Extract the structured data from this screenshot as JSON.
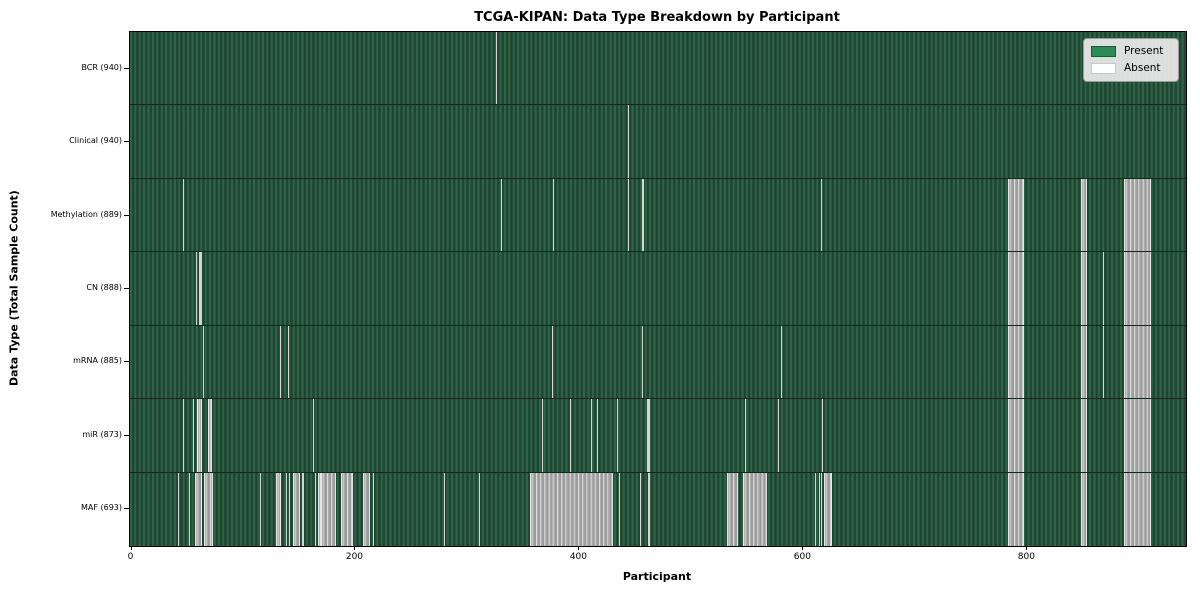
{
  "chart_data": {
    "type": "heatmap",
    "title": "TCGA-KIPAN: Data Type Breakdown by Participant",
    "xlabel": "Participant",
    "ylabel": "Data Type (Total Sample Count)",
    "x_max": 943,
    "x_ticks": [
      0,
      200,
      400,
      600,
      800
    ],
    "grid": "row-dividers",
    "legend_position": "upper right",
    "legend": [
      {
        "label": "Present",
        "color": "#2e8b57"
      },
      {
        "label": "Absent",
        "color": "#ffffff"
      }
    ],
    "value_encoding": {
      "present": 1,
      "absent": 0
    },
    "rows": [
      {
        "label": "BCR (940)",
        "data_type": "BCR",
        "present_count": 940,
        "absent_runs": [
          [
            327,
            1
          ]
        ]
      },
      {
        "label": "Clinical (940)",
        "data_type": "Clinical",
        "present_count": 940,
        "absent_runs": [
          [
            445,
            1
          ]
        ]
      },
      {
        "label": "Methylation (889)",
        "data_type": "Methylation",
        "present_count": 889,
        "absent_runs": [
          [
            47,
            1
          ],
          [
            331,
            1
          ],
          [
            378,
            1
          ],
          [
            445,
            1
          ],
          [
            457,
            2
          ],
          [
            617,
            1
          ],
          [
            784,
            14
          ],
          [
            849,
            6
          ],
          [
            888,
            24
          ]
        ]
      },
      {
        "label": "CN (888)",
        "data_type": "CN",
        "present_count": 888,
        "absent_runs": [
          [
            59,
            1
          ],
          [
            62,
            2
          ],
          [
            784,
            14
          ],
          [
            849,
            6
          ],
          [
            869,
            1
          ],
          [
            888,
            24
          ]
        ]
      },
      {
        "label": "mRNA (885)",
        "data_type": "mRNA",
        "present_count": 885,
        "absent_runs": [
          [
            65,
            1
          ],
          [
            134,
            1
          ],
          [
            141,
            1
          ],
          [
            377,
            1
          ],
          [
            457,
            1
          ],
          [
            581,
            1
          ],
          [
            784,
            14
          ],
          [
            849,
            6
          ],
          [
            869,
            1
          ],
          [
            888,
            24
          ]
        ]
      },
      {
        "label": "miR (873)",
        "data_type": "miR",
        "present_count": 873,
        "absent_runs": [
          [
            47,
            1
          ],
          [
            56,
            1
          ],
          [
            60,
            4
          ],
          [
            70,
            3
          ],
          [
            163,
            1
          ],
          [
            368,
            1
          ],
          [
            393,
            1
          ],
          [
            412,
            1
          ],
          [
            417,
            1
          ],
          [
            435,
            1
          ],
          [
            462,
            2
          ],
          [
            549,
            1
          ],
          [
            579,
            1
          ],
          [
            618,
            1
          ],
          [
            784,
            14
          ],
          [
            849,
            6
          ],
          [
            888,
            24
          ]
        ]
      },
      {
        "label": "MAF (693)",
        "data_type": "MAF",
        "present_count": 693,
        "absent_runs": [
          [
            43,
            1
          ],
          [
            53,
            1
          ],
          [
            58,
            6
          ],
          [
            66,
            8
          ],
          [
            116,
            1
          ],
          [
            130,
            5
          ],
          [
            139,
            1
          ],
          [
            142,
            1
          ],
          [
            146,
            6
          ],
          [
            154,
            1
          ],
          [
            165,
            1
          ],
          [
            168,
            3
          ],
          [
            171,
            13
          ],
          [
            188,
            11
          ],
          [
            208,
            6
          ],
          [
            217,
            1
          ],
          [
            280,
            1
          ],
          [
            312,
            1
          ],
          [
            357,
            74
          ],
          [
            437,
            1
          ],
          [
            455,
            1
          ],
          [
            463,
            1
          ],
          [
            533,
            10
          ],
          [
            547,
            22
          ],
          [
            612,
            1
          ],
          [
            615,
            1
          ],
          [
            617,
            1
          ],
          [
            620,
            7
          ],
          [
            784,
            14
          ],
          [
            849,
            6
          ],
          [
            888,
            24
          ]
        ]
      }
    ]
  },
  "colors": {
    "present_fill": "#2e8b57",
    "present_dark_stripe": "#1e4531",
    "absent_fill": "#ffffff",
    "absent_run_fill": "#a8a8a8",
    "row_divider": "#14271b",
    "plot_border": "#000000",
    "legend_background": "#ececec"
  }
}
